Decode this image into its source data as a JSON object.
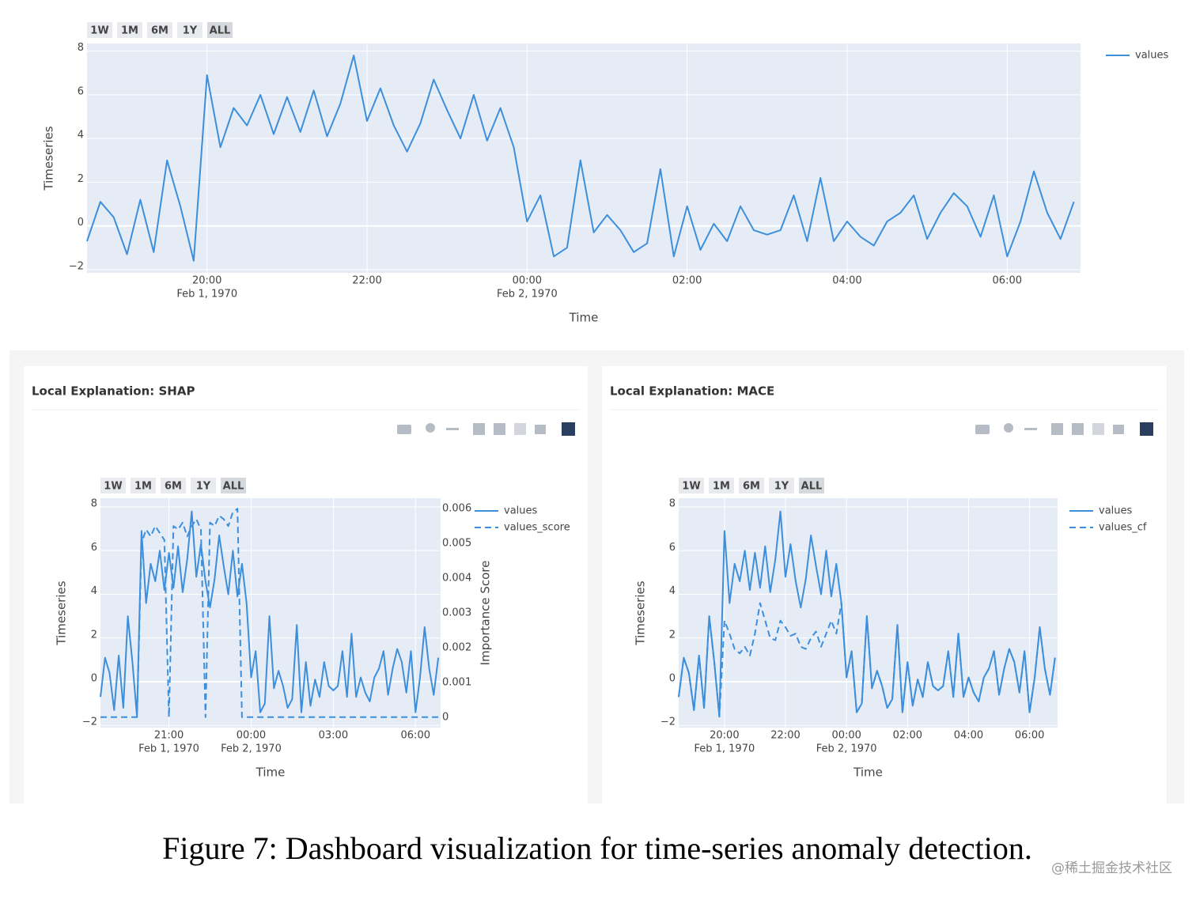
{
  "figure_caption": "Figure 7: Dashboard visualization for time-series anomaly detection.",
  "watermark": "@稀土掘金技术社区",
  "chart_data": [
    {
      "type": "line",
      "range_buttons": [
        "1W",
        "1M",
        "6M",
        "1Y",
        "ALL"
      ],
      "x_label": "Time",
      "y_label": "Timeseries",
      "x": [
        "1970-02-01 18:30",
        "1970-02-01 18:40",
        "1970-02-01 18:50",
        "1970-02-01 19:00",
        "1970-02-01 19:10",
        "1970-02-01 19:20",
        "1970-02-01 19:30",
        "1970-02-01 19:40",
        "1970-02-01 19:50",
        "1970-02-01 20:00",
        "1970-02-01 20:10",
        "1970-02-01 20:20",
        "1970-02-01 20:30",
        "1970-02-01 20:40",
        "1970-02-01 20:50",
        "1970-02-01 21:00",
        "1970-02-01 21:10",
        "1970-02-01 21:20",
        "1970-02-01 21:30",
        "1970-02-01 21:40",
        "1970-02-01 21:50",
        "1970-02-01 22:00",
        "1970-02-01 22:10",
        "1970-02-01 22:20",
        "1970-02-01 22:30",
        "1970-02-01 22:40",
        "1970-02-01 22:50",
        "1970-02-01 23:00",
        "1970-02-01 23:10",
        "1970-02-01 23:20",
        "1970-02-01 23:30",
        "1970-02-01 23:40",
        "1970-02-01 23:50",
        "1970-02-02 00:00",
        "1970-02-02 00:10",
        "1970-02-02 00:20",
        "1970-02-02 00:30",
        "1970-02-02 00:40",
        "1970-02-02 00:50",
        "1970-02-02 01:00",
        "1970-02-02 01:10",
        "1970-02-02 01:20",
        "1970-02-02 01:30",
        "1970-02-02 01:40",
        "1970-02-02 01:50",
        "1970-02-02 02:00",
        "1970-02-02 02:10",
        "1970-02-02 02:20",
        "1970-02-02 02:30",
        "1970-02-02 02:40",
        "1970-02-02 02:50",
        "1970-02-02 03:00",
        "1970-02-02 03:10",
        "1970-02-02 03:20",
        "1970-02-02 03:30",
        "1970-02-02 03:40",
        "1970-02-02 03:50",
        "1970-02-02 04:00",
        "1970-02-02 04:10",
        "1970-02-02 04:20",
        "1970-02-02 04:30",
        "1970-02-02 04:40",
        "1970-02-02 04:50",
        "1970-02-02 05:00",
        "1970-02-02 05:10",
        "1970-02-02 05:20",
        "1970-02-02 05:30",
        "1970-02-02 05:40",
        "1970-02-02 05:50",
        "1970-02-02 06:00",
        "1970-02-02 06:10",
        "1970-02-02 06:20",
        "1970-02-02 06:30",
        "1970-02-02 06:40",
        "1970-02-02 06:50"
      ],
      "series": [
        {
          "name": "values",
          "color": "#3d8fdb",
          "values": [
            -0.7,
            1.1,
            0.4,
            -1.3,
            1.2,
            -1.2,
            3.0,
            0.9,
            -1.6,
            6.9,
            3.6,
            5.4,
            4.6,
            6.0,
            4.2,
            5.9,
            4.3,
            6.2,
            4.1,
            5.6,
            7.8,
            4.8,
            6.3,
            4.6,
            3.4,
            4.7,
            6.7,
            5.3,
            4.0,
            6.0,
            3.9,
            5.4,
            3.6,
            0.2,
            1.4,
            -1.4,
            -1.0,
            3.0,
            -0.3,
            0.5,
            -0.2,
            -1.2,
            -0.8,
            2.6,
            -1.4,
            0.9,
            -1.1,
            0.1,
            -0.7,
            0.9,
            -0.2,
            -0.4,
            -0.2,
            1.4,
            -0.7,
            2.2,
            -0.7,
            0.2,
            -0.5,
            -0.9,
            0.2,
            0.6,
            1.4,
            -0.6,
            0.6,
            1.5,
            0.9,
            -0.5,
            1.4,
            -1.4,
            0.2,
            2.5,
            0.6,
            -0.6,
            1.1
          ]
        }
      ],
      "xlim": [
        "1970-02-01 18:30",
        "1970-02-02 06:55"
      ],
      "xticks": [
        {
          "value": "1970-02-01 20:00",
          "label": "20:00",
          "sublabel": "Feb 1, 1970"
        },
        {
          "value": "1970-02-01 22:00",
          "label": "22:00"
        },
        {
          "value": "1970-02-02 00:00",
          "label": "00:00",
          "sublabel": "Feb 2, 1970"
        },
        {
          "value": "1970-02-02 02:00",
          "label": "02:00"
        },
        {
          "value": "1970-02-02 04:00",
          "label": "04:00"
        },
        {
          "value": "1970-02-02 06:00",
          "label": "06:00"
        }
      ],
      "ylim": [
        -2.15,
        8.35
      ],
      "yticks": [
        {
          "value": -2,
          "label": "−2"
        },
        0,
        2,
        4,
        6,
        8
      ],
      "grid": true,
      "legend": "outside-right"
    },
    {
      "type": "line",
      "title": "Local Explanation: SHAP",
      "range_buttons": [
        "1W",
        "1M",
        "6M",
        "1Y",
        "ALL"
      ],
      "x_label": "Time",
      "y_label": "Timeseries",
      "y2_label": "Importance Score",
      "x": [
        "1970-02-01 18:30",
        "1970-02-01 18:40",
        "1970-02-01 18:50",
        "1970-02-01 19:00",
        "1970-02-01 19:10",
        "1970-02-01 19:20",
        "1970-02-01 19:30",
        "1970-02-01 19:40",
        "1970-02-01 19:50",
        "1970-02-01 20:00",
        "1970-02-01 20:10",
        "1970-02-01 20:20",
        "1970-02-01 20:30",
        "1970-02-01 20:40",
        "1970-02-01 20:50",
        "1970-02-01 21:00",
        "1970-02-01 21:10",
        "1970-02-01 21:20",
        "1970-02-01 21:30",
        "1970-02-01 21:40",
        "1970-02-01 21:50",
        "1970-02-01 22:00",
        "1970-02-01 22:10",
        "1970-02-01 22:20",
        "1970-02-01 22:30",
        "1970-02-01 22:40",
        "1970-02-01 22:50",
        "1970-02-01 23:00",
        "1970-02-01 23:10",
        "1970-02-01 23:20",
        "1970-02-01 23:30",
        "1970-02-01 23:40",
        "1970-02-01 23:50",
        "1970-02-02 00:00",
        "1970-02-02 00:10",
        "1970-02-02 00:20",
        "1970-02-02 00:30",
        "1970-02-02 00:40",
        "1970-02-02 00:50",
        "1970-02-02 01:00",
        "1970-02-02 01:10",
        "1970-02-02 01:20",
        "1970-02-02 01:30",
        "1970-02-02 01:40",
        "1970-02-02 01:50",
        "1970-02-02 02:00",
        "1970-02-02 02:10",
        "1970-02-02 02:20",
        "1970-02-02 02:30",
        "1970-02-02 02:40",
        "1970-02-02 02:50",
        "1970-02-02 03:00",
        "1970-02-02 03:10",
        "1970-02-02 03:20",
        "1970-02-02 03:30",
        "1970-02-02 03:40",
        "1970-02-02 03:50",
        "1970-02-02 04:00",
        "1970-02-02 04:10",
        "1970-02-02 04:20",
        "1970-02-02 04:30",
        "1970-02-02 04:40",
        "1970-02-02 04:50",
        "1970-02-02 05:00",
        "1970-02-02 05:10",
        "1970-02-02 05:20",
        "1970-02-02 05:30",
        "1970-02-02 05:40",
        "1970-02-02 05:50",
        "1970-02-02 06:00",
        "1970-02-02 06:10",
        "1970-02-02 06:20",
        "1970-02-02 06:30",
        "1970-02-02 06:40",
        "1970-02-02 06:50"
      ],
      "series": [
        {
          "name": "values",
          "color": "#3d8fdb",
          "values": [
            -0.7,
            1.1,
            0.4,
            -1.3,
            1.2,
            -1.2,
            3.0,
            0.9,
            -1.6,
            6.9,
            3.6,
            5.4,
            4.6,
            6.0,
            4.2,
            5.9,
            4.3,
            6.2,
            4.1,
            5.6,
            7.8,
            4.8,
            6.3,
            4.6,
            3.4,
            4.7,
            6.7,
            5.3,
            4.0,
            6.0,
            3.9,
            5.4,
            3.6,
            0.2,
            1.4,
            -1.4,
            -1.0,
            3.0,
            -0.3,
            0.5,
            -0.2,
            -1.2,
            -0.8,
            2.6,
            -1.4,
            0.9,
            -1.1,
            0.1,
            -0.7,
            0.9,
            -0.2,
            -0.4,
            -0.2,
            1.4,
            -0.7,
            2.2,
            -0.7,
            0.2,
            -0.5,
            -0.9,
            0.2,
            0.6,
            1.4,
            -0.6,
            0.6,
            1.5,
            0.9,
            -0.5,
            1.4,
            -1.4,
            0.2,
            2.5,
            0.6,
            -0.6,
            1.1
          ]
        },
        {
          "name": "values_score",
          "color": "#3d8fdb",
          "dash": "dash",
          "axis": "y2",
          "values": [
            0,
            0,
            0,
            0,
            0,
            0,
            0,
            0,
            0,
            0.005,
            0.0054,
            0.0052,
            0.0055,
            0.0053,
            0.0051,
            0,
            0.0055,
            0.0054,
            0.0056,
            0.0052,
            0.0055,
            0.0057,
            0.0054,
            0,
            0.0056,
            0.0055,
            0.0058,
            0.0057,
            0.0055,
            0.0059,
            0.006,
            0,
            0,
            0,
            0,
            0,
            0,
            0,
            0,
            0,
            0,
            0,
            0,
            0,
            0,
            0,
            0,
            0,
            0,
            0,
            0,
            0,
            0,
            0,
            0,
            0,
            0,
            0,
            0,
            0,
            0,
            0,
            0,
            0,
            0,
            0,
            0,
            0,
            0,
            0,
            0,
            0,
            0,
            0,
            0
          ]
        }
      ],
      "xlim": [
        "1970-02-01 18:30",
        "1970-02-02 06:55"
      ],
      "xticks": [
        {
          "value": "1970-02-01 21:00",
          "label": "21:00",
          "sublabel": "Feb 1, 1970"
        },
        {
          "value": "1970-02-02 00:00",
          "label": "00:00",
          "sublabel": "Feb 2, 1970"
        },
        {
          "value": "1970-02-02 03:00",
          "label": "03:00"
        },
        {
          "value": "1970-02-02 06:00",
          "label": "06:00"
        }
      ],
      "ylim": [
        -2.1,
        8.4
      ],
      "yticks": [
        {
          "value": -2,
          "label": "−2"
        },
        0,
        2,
        4,
        6,
        8
      ],
      "y2lim": [
        -0.0003,
        0.0063
      ],
      "y2ticks": [
        0,
        0.001,
        0.002,
        0.003,
        0.004,
        0.005,
        0.006
      ],
      "grid": true,
      "legend": "outside-right"
    },
    {
      "type": "line",
      "title": "Local Explanation: MACE",
      "range_buttons": [
        "1W",
        "1M",
        "6M",
        "1Y",
        "ALL"
      ],
      "x_label": "Time",
      "y_label": "Timeseries",
      "x": [
        "1970-02-01 18:30",
        "1970-02-01 18:40",
        "1970-02-01 18:50",
        "1970-02-01 19:00",
        "1970-02-01 19:10",
        "1970-02-01 19:20",
        "1970-02-01 19:30",
        "1970-02-01 19:40",
        "1970-02-01 19:50",
        "1970-02-01 20:00",
        "1970-02-01 20:10",
        "1970-02-01 20:20",
        "1970-02-01 20:30",
        "1970-02-01 20:40",
        "1970-02-01 20:50",
        "1970-02-01 21:00",
        "1970-02-01 21:10",
        "1970-02-01 21:20",
        "1970-02-01 21:30",
        "1970-02-01 21:40",
        "1970-02-01 21:50",
        "1970-02-01 22:00",
        "1970-02-01 22:10",
        "1970-02-01 22:20",
        "1970-02-01 22:30",
        "1970-02-01 22:40",
        "1970-02-01 22:50",
        "1970-02-01 23:00",
        "1970-02-01 23:10",
        "1970-02-01 23:20",
        "1970-02-01 23:30",
        "1970-02-01 23:40",
        "1970-02-01 23:50",
        "1970-02-02 00:00",
        "1970-02-02 00:10",
        "1970-02-02 00:20",
        "1970-02-02 00:30",
        "1970-02-02 00:40",
        "1970-02-02 00:50",
        "1970-02-02 01:00",
        "1970-02-02 01:10",
        "1970-02-02 01:20",
        "1970-02-02 01:30",
        "1970-02-02 01:40",
        "1970-02-02 01:50",
        "1970-02-02 02:00",
        "1970-02-02 02:10",
        "1970-02-02 02:20",
        "1970-02-02 02:30",
        "1970-02-02 02:40",
        "1970-02-02 02:50",
        "1970-02-02 03:00",
        "1970-02-02 03:10",
        "1970-02-02 03:20",
        "1970-02-02 03:30",
        "1970-02-02 03:40",
        "1970-02-02 03:50",
        "1970-02-02 04:00",
        "1970-02-02 04:10",
        "1970-02-02 04:20",
        "1970-02-02 04:30",
        "1970-02-02 04:40",
        "1970-02-02 04:50",
        "1970-02-02 05:00",
        "1970-02-02 05:10",
        "1970-02-02 05:20",
        "1970-02-02 05:30",
        "1970-02-02 05:40",
        "1970-02-02 05:50",
        "1970-02-02 06:00",
        "1970-02-02 06:10",
        "1970-02-02 06:20",
        "1970-02-02 06:30",
        "1970-02-02 06:40",
        "1970-02-02 06:50"
      ],
      "series": [
        {
          "name": "values",
          "color": "#3d8fdb",
          "values": [
            -0.7,
            1.1,
            0.4,
            -1.3,
            1.2,
            -1.2,
            3.0,
            0.9,
            -1.6,
            6.9,
            3.6,
            5.4,
            4.6,
            6.0,
            4.2,
            5.9,
            4.3,
            6.2,
            4.1,
            5.6,
            7.8,
            4.8,
            6.3,
            4.6,
            3.4,
            4.7,
            6.7,
            5.3,
            4.0,
            6.0,
            3.9,
            5.4,
            3.6,
            0.2,
            1.4,
            -1.4,
            -1.0,
            3.0,
            -0.3,
            0.5,
            -0.2,
            -1.2,
            -0.8,
            2.6,
            -1.4,
            0.9,
            -1.1,
            0.1,
            -0.7,
            0.9,
            -0.2,
            -0.4,
            -0.2,
            1.4,
            -0.7,
            2.2,
            -0.7,
            0.2,
            -0.5,
            -0.9,
            0.2,
            0.6,
            1.4,
            -0.6,
            0.6,
            1.5,
            0.9,
            -0.5,
            1.4,
            -1.4,
            0.2,
            2.5,
            0.6,
            -0.6,
            1.1
          ]
        },
        {
          "name": "values_cf",
          "color": "#3d8fdb",
          "dash": "dash",
          "values": [
            -0.7,
            1.1,
            0.4,
            -1.3,
            1.2,
            -1.2,
            3.0,
            0.9,
            -1.6,
            2.8,
            2.2,
            1.5,
            1.3,
            1.6,
            1.2,
            2.2,
            3.6,
            2.8,
            2.0,
            1.9,
            2.8,
            2.5,
            2.1,
            2.2,
            1.6,
            1.5,
            2.0,
            2.3,
            1.6,
            2.2,
            2.8,
            2.2,
            3.6,
            0.2,
            1.4,
            -1.4,
            -1.0,
            3.0,
            -0.3,
            0.5,
            -0.2,
            -1.2,
            -0.8,
            2.6,
            -1.4,
            0.9,
            -1.1,
            0.1,
            -0.7,
            0.9,
            -0.2,
            -0.4,
            -0.2,
            1.4,
            -0.7,
            2.2,
            -0.7,
            0.2,
            -0.5,
            -0.9,
            0.2,
            0.6,
            1.4,
            -0.6,
            0.6,
            1.5,
            0.9,
            -0.5,
            1.4,
            -1.4,
            0.2,
            2.5,
            0.6,
            -0.6,
            1.1
          ]
        }
      ],
      "xlim": [
        "1970-02-01 18:30",
        "1970-02-02 06:55"
      ],
      "xticks": [
        {
          "value": "1970-02-01 20:00",
          "label": "20:00",
          "sublabel": "Feb 1, 1970"
        },
        {
          "value": "1970-02-01 22:00",
          "label": "22:00"
        },
        {
          "value": "1970-02-02 00:00",
          "label": "00:00",
          "sublabel": "Feb 2, 1970"
        },
        {
          "value": "1970-02-02 02:00",
          "label": "02:00"
        },
        {
          "value": "1970-02-02 04:00",
          "label": "04:00"
        },
        {
          "value": "1970-02-02 06:00",
          "label": "06:00"
        }
      ],
      "ylim": [
        -2.1,
        8.4
      ],
      "yticks": [
        {
          "value": -2,
          "label": "−2"
        },
        0,
        2,
        4,
        6,
        8
      ],
      "grid": true,
      "legend": "outside-right"
    }
  ]
}
